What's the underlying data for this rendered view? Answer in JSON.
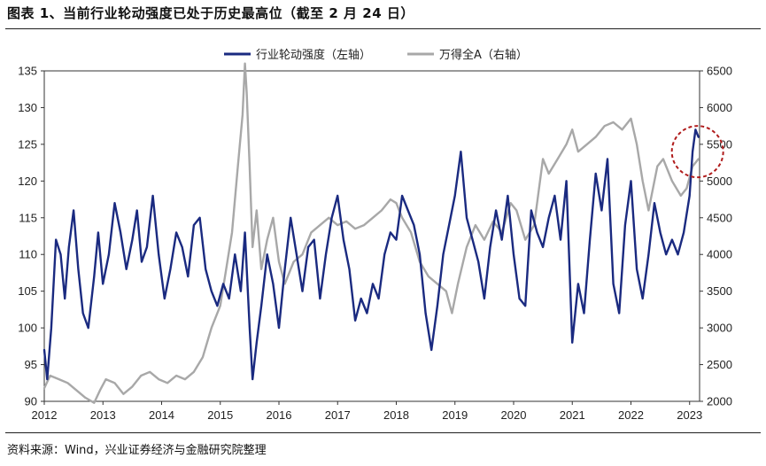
{
  "title": "图表 1、当前行业轮动强度已处于历史最高位（截至 2 月 24 日）",
  "source": "资料来源：Wind，兴业证券经济与金融研究院整理",
  "colors": {
    "rotation": "#1a2a80",
    "index": "#a8a8a8",
    "highlight": "#b01c1c",
    "axis": "#333333"
  },
  "chart_data": {
    "type": "line",
    "title": "图表 1、当前行业轮动强度已处于历史最高位（截至 2 月 24 日）",
    "legend_position": "top",
    "grid": false,
    "x_ticks": [
      "2012",
      "2013",
      "2014",
      "2015",
      "2016",
      "2017",
      "2018",
      "2019",
      "2020",
      "2021",
      "2022",
      "2023"
    ],
    "xlim": [
      2012.0,
      2023.17
    ],
    "y_left": {
      "lim": [
        90,
        135
      ],
      "ticks": [
        "90",
        "95",
        "100",
        "105",
        "110",
        "115",
        "120",
        "125",
        "130",
        "135"
      ]
    },
    "y_right": {
      "lim": [
        2000,
        6500
      ],
      "ticks": [
        "2000",
        "2500",
        "3000",
        "3500",
        "4000",
        "4500",
        "5000",
        "5500",
        "6000",
        "6500"
      ]
    },
    "annotation": "dashed circle marking the latest 2023 reading",
    "series": [
      {
        "name": "行业轮动强度（左轴）",
        "axis": "left",
        "x": [
          2012.0,
          2012.05,
          2012.12,
          2012.2,
          2012.28,
          2012.35,
          2012.42,
          2012.5,
          2012.58,
          2012.66,
          2012.75,
          2012.85,
          2012.92,
          2013.0,
          2013.1,
          2013.2,
          2013.3,
          2013.4,
          2013.5,
          2013.58,
          2013.66,
          2013.75,
          2013.85,
          2013.95,
          2014.05,
          2014.15,
          2014.25,
          2014.35,
          2014.45,
          2014.55,
          2014.65,
          2014.75,
          2014.85,
          2014.95,
          2015.05,
          2015.15,
          2015.25,
          2015.35,
          2015.42,
          2015.5,
          2015.55,
          2015.62,
          2015.7,
          2015.8,
          2015.9,
          2016.0,
          2016.1,
          2016.2,
          2016.3,
          2016.4,
          2016.5,
          2016.6,
          2016.7,
          2016.8,
          2016.9,
          2017.0,
          2017.1,
          2017.2,
          2017.3,
          2017.4,
          2017.5,
          2017.6,
          2017.7,
          2017.8,
          2017.9,
          2018.0,
          2018.1,
          2018.2,
          2018.3,
          2018.4,
          2018.5,
          2018.6,
          2018.7,
          2018.8,
          2018.9,
          2019.0,
          2019.1,
          2019.2,
          2019.3,
          2019.4,
          2019.5,
          2019.6,
          2019.7,
          2019.8,
          2019.9,
          2020.0,
          2020.1,
          2020.2,
          2020.3,
          2020.4,
          2020.5,
          2020.6,
          2020.7,
          2020.8,
          2020.9,
          2021.0,
          2021.1,
          2021.2,
          2021.3,
          2021.4,
          2021.5,
          2021.6,
          2021.7,
          2021.8,
          2021.9,
          2022.0,
          2022.1,
          2022.2,
          2022.3,
          2022.4,
          2022.5,
          2022.6,
          2022.7,
          2022.8,
          2022.9,
          2023.0,
          2023.05,
          2023.1,
          2023.15
        ],
        "values": [
          97,
          93,
          100,
          112,
          110,
          104,
          111,
          116,
          108,
          102,
          100,
          107,
          113,
          106,
          110,
          117,
          113,
          108,
          112,
          116,
          109,
          111,
          118,
          110,
          104,
          108,
          113,
          111,
          107,
          114,
          115,
          108,
          105,
          103,
          106,
          104,
          110,
          105,
          113,
          100,
          93,
          98,
          103,
          110,
          106,
          100,
          108,
          115,
          110,
          105,
          111,
          112,
          104,
          110,
          115,
          118,
          112,
          108,
          101,
          104,
          102,
          106,
          104,
          110,
          113,
          112,
          118,
          116,
          114,
          110,
          102,
          97,
          103,
          110,
          114,
          118,
          124,
          115,
          112,
          109,
          104,
          111,
          116,
          112,
          118,
          110,
          104,
          103,
          116,
          113,
          111,
          115,
          118,
          112,
          120,
          98,
          106,
          102,
          112,
          121,
          116,
          123,
          106,
          102,
          114,
          120,
          108,
          104,
          110,
          117,
          113,
          110,
          112,
          110,
          113,
          118,
          124,
          127,
          126
        ]
      },
      {
        "name": "万得全A（右轴）",
        "axis": "right",
        "x": [
          2012.0,
          2012.1,
          2012.25,
          2012.4,
          2012.55,
          2012.7,
          2012.85,
          2012.95,
          2013.05,
          2013.2,
          2013.35,
          2013.5,
          2013.65,
          2013.8,
          2013.95,
          2014.1,
          2014.25,
          2014.4,
          2014.55,
          2014.7,
          2014.85,
          2015.0,
          2015.1,
          2015.2,
          2015.3,
          2015.38,
          2015.42,
          2015.45,
          2015.5,
          2015.55,
          2015.62,
          2015.7,
          2015.8,
          2015.9,
          2016.0,
          2016.1,
          2016.25,
          2016.4,
          2016.55,
          2016.7,
          2016.85,
          2017.0,
          2017.15,
          2017.3,
          2017.45,
          2017.6,
          2017.75,
          2017.9,
          2018.0,
          2018.1,
          2018.25,
          2018.4,
          2018.55,
          2018.7,
          2018.85,
          2018.95,
          2019.05,
          2019.2,
          2019.35,
          2019.5,
          2019.65,
          2019.8,
          2019.95,
          2020.05,
          2020.2,
          2020.35,
          2020.5,
          2020.6,
          2020.75,
          2020.9,
          2021.0,
          2021.1,
          2021.25,
          2021.4,
          2021.55,
          2021.7,
          2021.85,
          2022.0,
          2022.1,
          2022.2,
          2022.3,
          2022.45,
          2022.55,
          2022.7,
          2022.85,
          2022.95,
          2023.05,
          2023.15
        ],
        "values": [
          2180,
          2350,
          2300,
          2250,
          2150,
          2050,
          1980,
          2150,
          2300,
          2250,
          2100,
          2200,
          2350,
          2400,
          2300,
          2250,
          2350,
          2300,
          2400,
          2600,
          3000,
          3300,
          3800,
          4300,
          5200,
          5900,
          6600,
          6200,
          5200,
          4100,
          4600,
          3800,
          4200,
          4500,
          3900,
          3600,
          3900,
          4000,
          4300,
          4400,
          4500,
          4400,
          4450,
          4350,
          4400,
          4500,
          4600,
          4750,
          4700,
          4500,
          4300,
          3900,
          3700,
          3600,
          3500,
          3200,
          3600,
          4100,
          4400,
          4200,
          4450,
          4300,
          4700,
          4600,
          4200,
          4400,
          5300,
          5100,
          5300,
          5500,
          5700,
          5400,
          5500,
          5600,
          5750,
          5800,
          5700,
          5850,
          5500,
          5000,
          4600,
          5200,
          5300,
          5000,
          4800,
          4900,
          5200,
          5300
        ]
      }
    ]
  }
}
